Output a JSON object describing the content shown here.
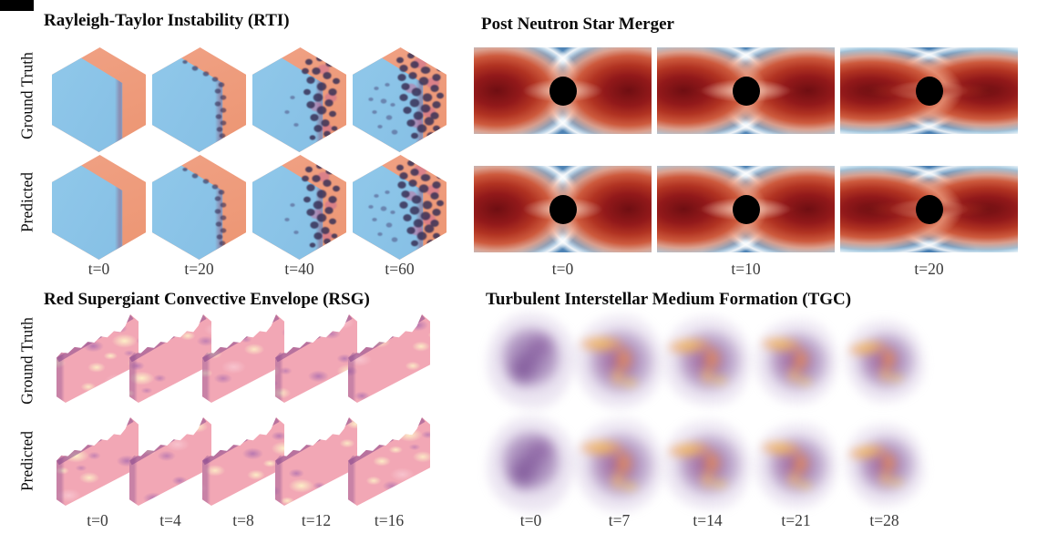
{
  "page": {
    "background": "#ffffff",
    "corner_artifact_color": "#000000"
  },
  "figure": {
    "panels": [
      {
        "id": "rti",
        "title": "Rayleigh-Taylor Instability (RTI)",
        "row_labels": [
          "Ground Truth",
          "Predicted"
        ],
        "time_labels": [
          "t=0",
          "t=20",
          "t=40",
          "t=60"
        ],
        "colors": {
          "heavy_fluid": "#ee9a79",
          "light_fluid": "#88c2e6",
          "mixing_layer": "#3c3458",
          "mixing_accent": "#c7668c"
        }
      },
      {
        "id": "nsm",
        "title": "Post Neutron Star Merger",
        "row_labels": [],
        "time_labels": [
          "t=0",
          "t=10",
          "t=20"
        ],
        "colors": {
          "background_gas": "#8cbad8",
          "ejecta_dark": "#6f0e12",
          "ejecta": "#b13322",
          "fringe": "#f6ece4",
          "black_hole": "#000000"
        }
      },
      {
        "id": "rsg",
        "title": "Red Supergiant Convective Envelope (RSG)",
        "row_labels": [
          "Ground Truth",
          "Predicted"
        ],
        "time_labels": [
          "t=0",
          "t=4",
          "t=8",
          "t=12",
          "t=16"
        ],
        "colors": {
          "surface": "#f2a7b5",
          "hot_veins": "#fdf3c8",
          "cool_granules": "#9a5fae"
        }
      },
      {
        "id": "tgc",
        "title": "Turbulent Interstellar Medium Formation (TGC)",
        "row_labels": [],
        "time_labels": [
          "t=0",
          "t=7",
          "t=14",
          "t=21",
          "t=28"
        ],
        "colors": {
          "diffuse_cloud": "#ac92c6",
          "dense_cloud": "#7a4e94",
          "core": "#f0924e",
          "core_bright": "#f7c656"
        }
      }
    ]
  }
}
